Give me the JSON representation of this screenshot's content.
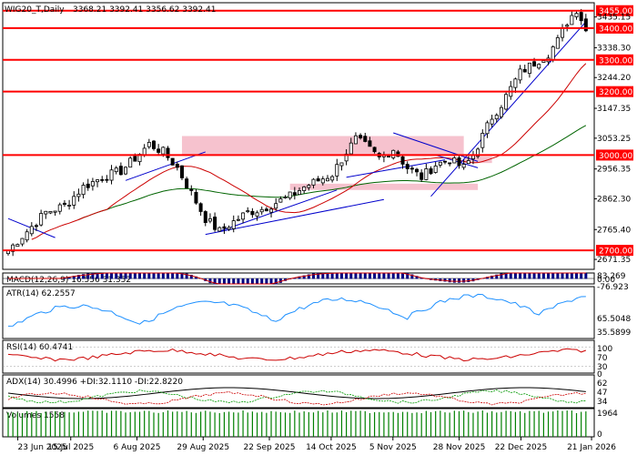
{
  "header": {
    "symbol": "WIG20_T,Daily",
    "ohlc": "3368.21 3392.41 3356.62 3392.41"
  },
  "chart_data": {
    "type": "candlestick",
    "title": "WIG20_T,Daily",
    "price_range": [
      2640,
      3480
    ],
    "y_ticks": [
      "3435.15",
      "3338.30",
      "3244.20",
      "3147.35",
      "3053.25",
      "2956.35",
      "2862.30",
      "2765.40",
      "2671.35"
    ],
    "levels": [
      {
        "label": "3455.00",
        "value": 3455
      },
      {
        "label": "3400.00",
        "value": 3400
      },
      {
        "label": "3300.00",
        "value": 3300
      },
      {
        "label": "3200.00",
        "value": 3200
      },
      {
        "label": "3000.00",
        "value": 3000
      },
      {
        "label": "2700.00",
        "value": 2700
      }
    ],
    "x_labels": [
      "23 Jun 2025",
      "15 Jul 2025",
      "6 Aug 2025",
      "29 Aug 2025",
      "22 Sep 2025",
      "14 Oct 2025",
      "5 Nov 2025",
      "28 Nov 2025",
      "22 Dec 2025",
      "21 Jan 2026"
    ],
    "close_path": [
      [
        0,
        2700
      ],
      [
        4,
        2760
      ],
      [
        8,
        2820
      ],
      [
        12,
        2840
      ],
      [
        16,
        2900
      ],
      [
        20,
        2930
      ],
      [
        24,
        2950
      ],
      [
        27,
        2990
      ],
      [
        30,
        3035
      ],
      [
        33,
        3010
      ],
      [
        36,
        2960
      ],
      [
        39,
        2880
      ],
      [
        42,
        2800
      ],
      [
        45,
        2760
      ],
      [
        48,
        2790
      ],
      [
        51,
        2820
      ],
      [
        54,
        2830
      ],
      [
        57,
        2850
      ],
      [
        60,
        2870
      ],
      [
        63,
        2900
      ],
      [
        66,
        2920
      ],
      [
        69,
        2940
      ],
      [
        72,
        3010
      ],
      [
        74,
        3050
      ],
      [
        76,
        3030
      ],
      [
        79,
        2990
      ],
      [
        82,
        3020
      ],
      [
        85,
        2960
      ],
      [
        88,
        2930
      ],
      [
        91,
        2970
      ],
      [
        94,
        2985
      ],
      [
        97,
        2960
      ],
      [
        99,
        3000
      ],
      [
        101,
        3060
      ],
      [
        103,
        3120
      ],
      [
        105,
        3160
      ],
      [
        107,
        3210
      ],
      [
        109,
        3260
      ],
      [
        111,
        3280
      ],
      [
        113,
        3300
      ],
      [
        115,
        3320
      ],
      [
        117,
        3360
      ],
      [
        119,
        3420
      ],
      [
        121,
        3460
      ],
      [
        122,
        3430
      ],
      [
        123,
        3392
      ]
    ],
    "indicators": [
      {
        "name": "MACD(12,26,9)",
        "values": "16.556 31.352",
        "scale": [
          "83.269",
          "0.00",
          "-76.923"
        ]
      },
      {
        "name": "ATR(14)",
        "values": "62.2557",
        "scale": [
          "65.5048",
          "35.5899"
        ]
      },
      {
        "name": "RSI(14)",
        "values": "60.4741",
        "scale": [
          "100",
          "70",
          "30",
          "0"
        ]
      },
      {
        "name": "ADX(14)",
        "values": "30.4996 +DI:32.1110 -DI:22.8220",
        "scale": [
          "62",
          "47",
          "34"
        ]
      },
      {
        "name": "Volumes",
        "values": "1558",
        "scale": [
          "1964",
          "0"
        ]
      }
    ]
  },
  "colors": {
    "level": "#ff0000",
    "level_tag": "#ff0000",
    "zone": "#f4b7c6",
    "ma_fast": "#cc0000",
    "ma_slow": "#006400",
    "trend": "#0000cc",
    "macd_hist": "#000080",
    "macd_signal": "#cc0000",
    "atr": "#1e90ff",
    "rsi": "#cc0000",
    "volume": "#008000"
  }
}
